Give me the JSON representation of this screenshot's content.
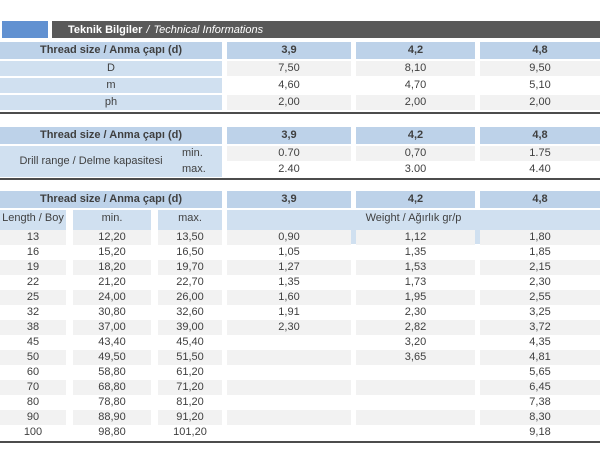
{
  "colors": {
    "accent_blue": "#6191d1",
    "titlebar_gray": "#595959",
    "header_blue": "#bdd2e9",
    "label_blue": "#d0e0f0",
    "stripe_gray": "#f2f2f2",
    "border_dark": "#4c4c4c"
  },
  "header": {
    "title_tr": "Teknik Bilgiler",
    "title_sep": "/",
    "title_en": "Technical Informations"
  },
  "table1": {
    "header_label": "Thread size / Anma çapı (d)",
    "columns": [
      "3,9",
      "4,2",
      "4,8"
    ],
    "rows": [
      {
        "label": "D",
        "values": [
          "7,50",
          "8,10",
          "9,50"
        ]
      },
      {
        "label": "m",
        "values": [
          "4,60",
          "4,70",
          "5,10"
        ]
      },
      {
        "label": "ph",
        "values": [
          "2,00",
          "2,00",
          "2,00"
        ]
      }
    ]
  },
  "table2": {
    "header_label": "Thread size / Anma çapı (d)",
    "columns": [
      "3,9",
      "4,2",
      "4,8"
    ],
    "row_label": "Drill range / Delme kapasitesi",
    "min_label": "min.",
    "max_label": "max.",
    "min_values": [
      "0.70",
      "0,70",
      "1.75"
    ],
    "max_values": [
      "2.40",
      "3.00",
      "4.40"
    ]
  },
  "table3": {
    "header_label": "Thread size / Anma çapı (d)",
    "columns": [
      "3,9",
      "4,2",
      "4,8"
    ],
    "subheader": {
      "length": "Length / Boy (I)",
      "min": "min.",
      "max": "max.",
      "weight": "Weight / Ağırlık gr/p"
    },
    "rows": [
      {
        "length": "13",
        "min": "12,20",
        "max": "13,50",
        "w1": "0,90",
        "w2": "1,12",
        "w3": "1,80"
      },
      {
        "length": "16",
        "min": "15,20",
        "max": "16,50",
        "w1": "1,05",
        "w2": "1,35",
        "w3": "1,85"
      },
      {
        "length": "19",
        "min": "18,20",
        "max": "19,70",
        "w1": "1,27",
        "w2": "1,53",
        "w3": "2,15"
      },
      {
        "length": "22",
        "min": "21,20",
        "max": "22,70",
        "w1": "1,35",
        "w2": "1,73",
        "w3": "2,30"
      },
      {
        "length": "25",
        "min": "24,00",
        "max": "26,00",
        "w1": "1,60",
        "w2": "1,95",
        "w3": "2,55"
      },
      {
        "length": "32",
        "min": "30,80",
        "max": "32,60",
        "w1": "1,91",
        "w2": "2,30",
        "w3": "3,25"
      },
      {
        "length": "38",
        "min": "37,00",
        "max": "39,00",
        "w1": "2,30",
        "w2": "2,82",
        "w3": "3,72"
      },
      {
        "length": "45",
        "min": "43,40",
        "max": "45,40",
        "w1": "",
        "w2": "3,20",
        "w3": "4,35"
      },
      {
        "length": "50",
        "min": "49,50",
        "max": "51,50",
        "w1": "",
        "w2": "3,65",
        "w3": "4,81"
      },
      {
        "length": "60",
        "min": "58,80",
        "max": "61,20",
        "w1": "",
        "w2": "",
        "w3": "5,65"
      },
      {
        "length": "70",
        "min": "68,80",
        "max": "71,20",
        "w1": "",
        "w2": "",
        "w3": "6,45"
      },
      {
        "length": "80",
        "min": "78,80",
        "max": "81,20",
        "w1": "",
        "w2": "",
        "w3": "7,38"
      },
      {
        "length": "90",
        "min": "88,90",
        "max": "91,20",
        "w1": "",
        "w2": "",
        "w3": "8,30"
      },
      {
        "length": "100",
        "min": "98,80",
        "max": "101,20",
        "w1": "",
        "w2": "",
        "w3": "9,18"
      }
    ]
  }
}
